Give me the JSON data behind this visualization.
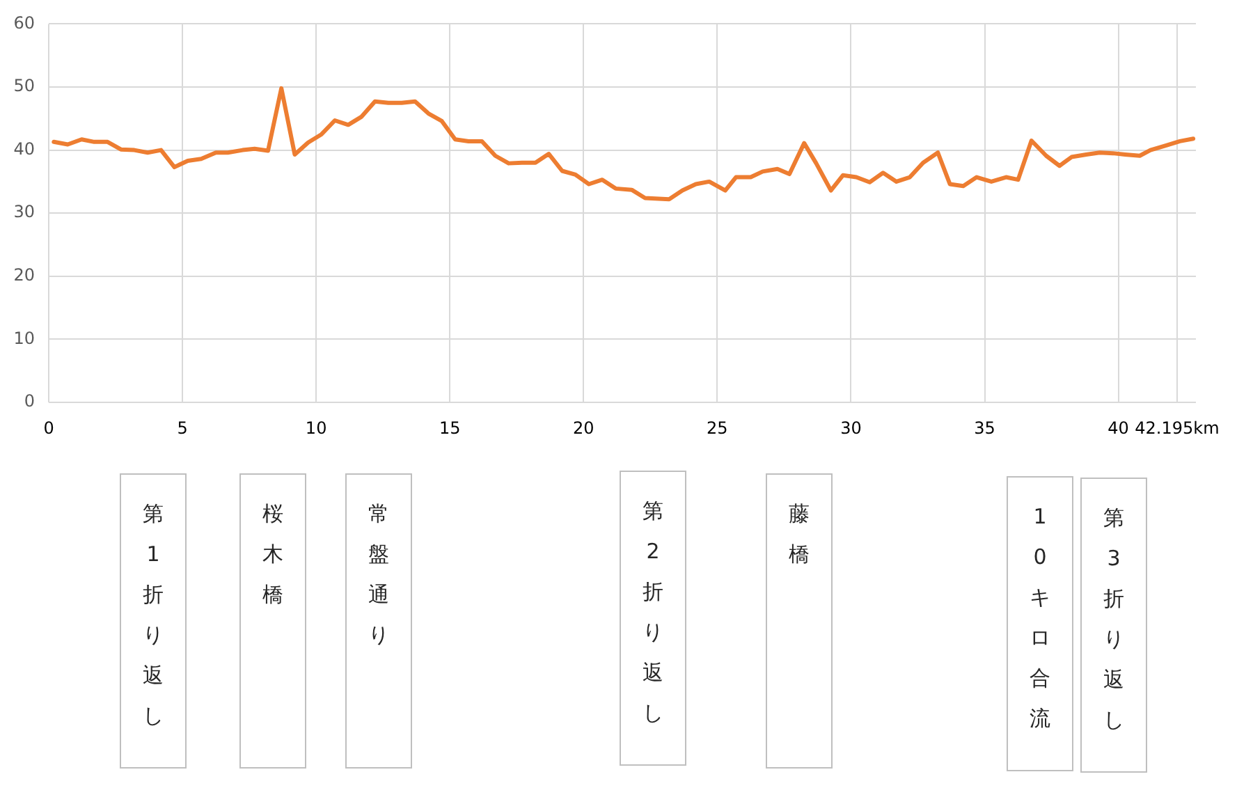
{
  "chart_data": {
    "type": "line",
    "x": [
      0.19,
      0.71,
      1.23,
      1.7,
      2.2,
      2.7,
      3.2,
      3.7,
      4.2,
      4.7,
      5.2,
      5.7,
      6.25,
      6.7,
      7.25,
      7.7,
      8.2,
      8.7,
      9.2,
      9.7,
      10.2,
      10.7,
      11.2,
      11.7,
      12.2,
      12.7,
      13.2,
      13.7,
      14.2,
      14.7,
      15.2,
      15.7,
      16.2,
      16.7,
      17.2,
      17.7,
      18.2,
      18.7,
      19.2,
      19.7,
      20.2,
      20.7,
      21.2,
      21.8,
      22.3,
      23.2,
      23.7,
      24.2,
      24.7,
      25.3,
      25.7,
      26.25,
      26.7,
      27.25,
      27.7,
      28.25,
      28.7,
      29.25,
      29.7,
      30.2,
      30.7,
      31.2,
      31.7,
      32.2,
      32.7,
      33.25,
      33.7,
      34.2,
      34.7,
      35.25,
      35.8,
      36.25,
      36.75,
      37.3,
      37.8,
      38.25,
      38.8,
      39.3,
      39.8,
      40.25,
      40.8,
      41.2,
      41.75,
      42.3,
      42.8
    ],
    "series": [
      {
        "color": "#ed7d31",
        "values": [
          41.3,
          40.9,
          41.7,
          41.3,
          41.3,
          40.1,
          40.0,
          39.6,
          40.0,
          37.3,
          38.3,
          38.6,
          39.6,
          39.6,
          40.0,
          40.2,
          39.9,
          49.8,
          39.3,
          41.2,
          42.5,
          44.7,
          44.0,
          45.3,
          47.7,
          47.5,
          47.5,
          47.7,
          45.8,
          44.6,
          41.7,
          41.4,
          41.4,
          39.1,
          37.9,
          38.0,
          38.0,
          39.4,
          36.7,
          36.1,
          34.6,
          35.3,
          33.9,
          33.7,
          32.4,
          32.2,
          33.6,
          34.6,
          35.0,
          33.6,
          35.7,
          35.7,
          36.6,
          37.0,
          36.2,
          41.1,
          37.9,
          33.6,
          36.0,
          35.7,
          34.9,
          36.4,
          35.0,
          35.7,
          38.0,
          39.6,
          34.6,
          34.3,
          35.7,
          35.0,
          35.7,
          35.3,
          41.5,
          39.1,
          37.5,
          38.9,
          39.3,
          39.6,
          39.5,
          39.3,
          39.1,
          40.0,
          40.7,
          41.4,
          41.8
        ]
      }
    ],
    "xlim": [
      0,
      42.9
    ],
    "xticks": [
      0,
      5,
      10,
      15,
      20,
      25,
      30,
      35,
      40,
      {
        "value": 42.195,
        "label": "42.195km"
      }
    ],
    "ylim": [
      0,
      60
    ],
    "yticks": [
      0,
      10,
      20,
      30,
      40,
      50,
      60
    ],
    "grid": true,
    "legend": false,
    "marker": "none",
    "line_style": "solid",
    "annotations": [
      "第1折り返し",
      "桜木橋",
      "常盤通り",
      "第2折り返し",
      "藤橋",
      "10キロ合流",
      "第3折り返し"
    ]
  }
}
